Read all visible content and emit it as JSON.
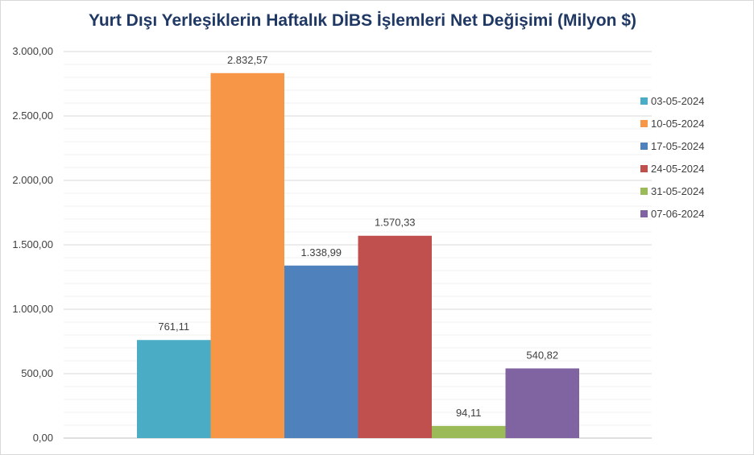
{
  "chart_data": {
    "type": "bar",
    "title": "Yurt Dışı Yerleşiklerin Haftalık DİBS İşlemleri Net Değişimi (Milyon $)",
    "xlabel": "",
    "ylabel": "",
    "ylim": [
      0,
      3000
    ],
    "yticks": [
      "0,00",
      "500,00",
      "1.000,00",
      "1.500,00",
      "2.000,00",
      "2.500,00",
      "3.000,00"
    ],
    "ytick_values": [
      0,
      500,
      1000,
      1500,
      2000,
      2500,
      3000
    ],
    "grid": true,
    "legend_position": "right",
    "series": [
      {
        "name": "03-05-2024",
        "value": 761.11,
        "label": "761,11",
        "color": "#4bacc6"
      },
      {
        "name": "10-05-2024",
        "value": 2832.57,
        "label": "2.832,57",
        "color": "#f79646"
      },
      {
        "name": "17-05-2024",
        "value": 1338.99,
        "label": "1.338,99",
        "color": "#4f81bd"
      },
      {
        "name": "24-05-2024",
        "value": 1570.33,
        "label": "1.570,33",
        "color": "#c0504d"
      },
      {
        "name": "31-05-2024",
        "value": 94.11,
        "label": "94,11",
        "color": "#9bbb59"
      },
      {
        "name": "07-06-2024",
        "value": 540.82,
        "label": "540,82",
        "color": "#8064a2"
      }
    ]
  }
}
